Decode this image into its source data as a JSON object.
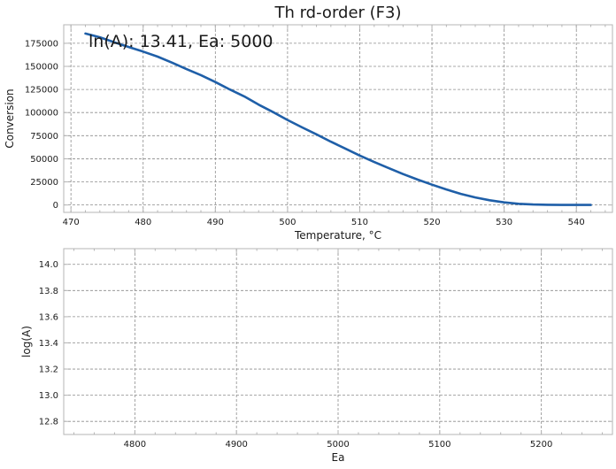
{
  "chart_data": [
    {
      "type": "line",
      "title": "Th rd-order (F3)",
      "annotation": "ln(A): 13.41, Ea: 5000",
      "xlabel": "Temperature, °C",
      "ylabel": "Conversion",
      "xlim": [
        469,
        545
      ],
      "ylim": [
        -8000,
        195000
      ],
      "xticks": [
        470,
        480,
        490,
        500,
        510,
        520,
        530,
        540
      ],
      "yticks": [
        0,
        25000,
        50000,
        75000,
        100000,
        125000,
        150000,
        175000
      ],
      "grid": true,
      "series": [
        {
          "color": "#1f5fa8",
          "x": [
            472,
            474,
            476,
            478,
            480,
            482,
            484,
            486,
            488,
            490,
            492,
            494,
            496,
            498,
            500,
            502,
            504,
            506,
            508,
            510,
            512,
            514,
            516,
            518,
            520,
            522,
            524,
            526,
            528,
            530,
            532,
            534,
            536,
            538,
            540,
            542
          ],
          "y": [
            185500,
            181500,
            176000,
            171000,
            166000,
            160500,
            154000,
            147000,
            140500,
            133000,
            125000,
            117500,
            108500,
            100500,
            92000,
            84000,
            76500,
            68500,
            61000,
            53500,
            46500,
            40000,
            33500,
            27500,
            22000,
            16800,
            12000,
            8200,
            5100,
            2800,
            1300,
            500,
            200,
            50,
            10,
            0
          ]
        }
      ]
    },
    {
      "type": "scatter",
      "xlabel": "Ea",
      "ylabel": "log(A)",
      "xlim": [
        4730,
        5270
      ],
      "ylim": [
        12.7,
        14.12
      ],
      "xticks": [
        4800,
        4900,
        5000,
        5100,
        5200
      ],
      "yticks": [
        12.8,
        13.0,
        13.2,
        13.4,
        13.6,
        13.8,
        14.0
      ],
      "ytick_labels": [
        "12.8",
        "13.0",
        "13.2",
        "13.4",
        "13.6",
        "13.8",
        "14.0"
      ],
      "grid": true,
      "series": []
    }
  ]
}
